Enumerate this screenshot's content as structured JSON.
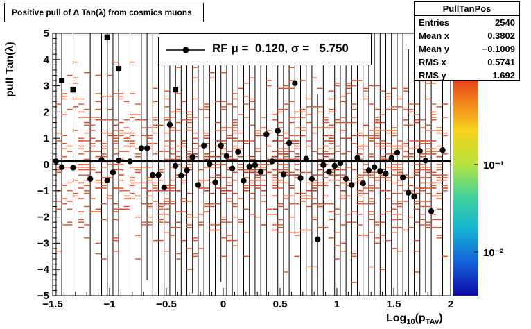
{
  "title": "Positive pull of Δ Tan(λ) from cosmics muons",
  "stats": {
    "name": "PullTanPos",
    "rows": [
      {
        "label": "Entries",
        "value": "2540"
      },
      {
        "label": "Mean x",
        "value": "0.3802"
      },
      {
        "label": "Mean y",
        "value": "−0.1009"
      },
      {
        "label": "RMS x",
        "value": "0.5741"
      },
      {
        "label": "RMS y",
        "value": "1.692"
      }
    ]
  },
  "legend": {
    "label": "RF μ =  0.120, σ =   5.750"
  },
  "colorbar": {
    "ticks": [
      "10⁻¹",
      "10⁻²"
    ]
  },
  "colors": {
    "markers": "#000000",
    "hist": "#e8491b",
    "fit_line": "#000000"
  },
  "chart_data": {
    "type": "scatter",
    "title": "Positive pull of Δ Tan(λ) from cosmics muons",
    "xlabel": "Log10(pTAv)",
    "ylabel": "pull Tan(λ)",
    "xlim": [
      -1.5,
      2
    ],
    "ylim": [
      -5,
      5
    ],
    "xticks": [
      "−1.5",
      "−1",
      "−0.5",
      "0",
      "0.5",
      "1",
      "1.5",
      "2"
    ],
    "yticks": [
      "5",
      "4",
      "3",
      "2",
      "1",
      "0",
      "−1",
      "−2",
      "−3",
      "−4",
      "−5"
    ],
    "fit_line_y": 0.12,
    "series": [
      {
        "name": "RF",
        "marker": "circle",
        "x": [
          -1.47,
          -1.42,
          -1.32,
          -1.17,
          -1.07,
          -1.02,
          -0.97,
          -0.92,
          -0.82,
          -0.72,
          -0.67,
          -0.62,
          -0.57,
          -0.52,
          -0.47,
          -0.42,
          -0.37,
          -0.32,
          -0.27,
          -0.22,
          -0.17,
          -0.12,
          -0.07,
          -0.02,
          0.03,
          0.08,
          0.13,
          0.18,
          0.23,
          0.28,
          0.33,
          0.38,
          0.43,
          0.48,
          0.53,
          0.58,
          0.63,
          0.68,
          0.73,
          0.78,
          0.83,
          0.88,
          0.93,
          0.98,
          1.03,
          1.08,
          1.13,
          1.18,
          1.23,
          1.28,
          1.33,
          1.38,
          1.43,
          1.48,
          1.53,
          1.58,
          1.63,
          1.68,
          1.73,
          1.78,
          1.83,
          1.93
        ],
        "y": [
          0.12,
          -0.1,
          -0.12,
          -0.55,
          0.18,
          -0.6,
          -0.3,
          0.15,
          0.12,
          0.62,
          0.62,
          -0.4,
          -0.4,
          -0.88,
          1.52,
          -0.05,
          -0.42,
          -0.22,
          0.28,
          -0.78,
          0.72,
          0.02,
          -0.68,
          0.72,
          0.32,
          -0.15,
          0.48,
          -0.62,
          -0.08,
          -0.02,
          -0.28,
          1.15,
          0.12,
          1.28,
          -0.38,
          0.82,
          3.1,
          -0.52,
          0.22,
          -0.55,
          -2.85,
          -0.02,
          -0.28,
          -0.05,
          0.05,
          -0.55,
          -0.78,
          0.25,
          -0.72,
          -0.22,
          -0.1,
          -0.25,
          -0.35,
          0.25,
          0.45,
          -0.5,
          -1.08,
          -1.22,
          0.52,
          0.15,
          -1.78,
          0.55
        ]
      },
      {
        "name": "",
        "marker": "square",
        "x": [
          -1.42,
          -1.32,
          -1.02,
          -0.92,
          -0.42
        ],
        "y": [
          3.2,
          2.85,
          4.85,
          3.65,
          2.85
        ]
      }
    ]
  }
}
